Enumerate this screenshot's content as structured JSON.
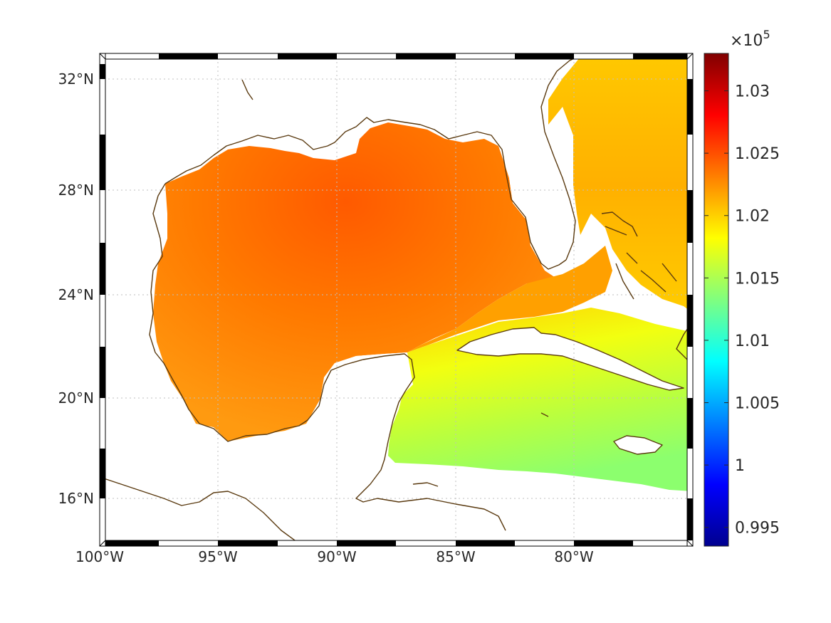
{
  "map": {
    "lon_range": [
      -100,
      -75
    ],
    "lat_range": [
      14.3,
      32.9
    ],
    "lon_ticks": [
      {
        "value": -100,
        "label": "100°W"
      },
      {
        "value": -95,
        "label": "95°W"
      },
      {
        "value": -90,
        "label": "90°W"
      },
      {
        "value": -85,
        "label": "85°W"
      },
      {
        "value": -80,
        "label": "80°W"
      }
    ],
    "lat_ticks": [
      {
        "value": 32,
        "label": "32°N"
      },
      {
        "value": 28,
        "label": "28°N"
      },
      {
        "value": 24,
        "label": "24°N"
      },
      {
        "value": 20,
        "label": "20°N"
      },
      {
        "value": 16,
        "label": "16°N"
      }
    ],
    "grid": true,
    "coastline_color": "#5a3a10",
    "frame_style": "alternating black-white border"
  },
  "colorbar": {
    "multiplier_text": "×10",
    "multiplier_exp": "5",
    "colormap": "jet",
    "range": [
      0.9935,
      1.033
    ],
    "ticks": [
      {
        "value": 1.03,
        "label": "1.03"
      },
      {
        "value": 1.025,
        "label": "1.025"
      },
      {
        "value": 1.02,
        "label": "1.02"
      },
      {
        "value": 1.015,
        "label": "1.015"
      },
      {
        "value": 1.01,
        "label": "1.01"
      },
      {
        "value": 1.005,
        "label": "1.005"
      },
      {
        "value": 1.0,
        "label": "1"
      },
      {
        "value": 0.995,
        "label": "0.995"
      }
    ]
  },
  "chart_data": {
    "type": "heatmap",
    "description_units": "sea level pressure (Pa, ×10^5)",
    "field_regions": [
      {
        "region": "northern Gulf of Mexico",
        "value": 1.025
      },
      {
        "region": "central/western Gulf of Mexico",
        "value": 1.023
      },
      {
        "region": "Atlantic off Florida",
        "value": 1.021
      },
      {
        "region": "Straits of Florida / north of Cuba",
        "value": 1.021
      },
      {
        "region": "Yucatan Channel",
        "value": 1.019
      },
      {
        "region": "Caribbean south of Cuba",
        "value": 1.017
      },
      {
        "region": "Caribbean near Jamaica",
        "value": 1.0155
      }
    ]
  }
}
